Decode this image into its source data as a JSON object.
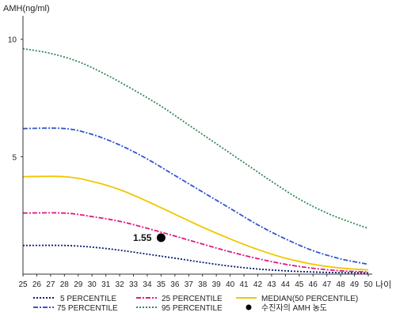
{
  "chart_data": {
    "type": "line",
    "ylabel": "AMH(ng/ml)",
    "xlabel": "나이",
    "xlim": [
      25,
      50
    ],
    "ylim": [
      0,
      11
    ],
    "x_ticks": [
      25,
      26,
      27,
      28,
      29,
      30,
      31,
      32,
      33,
      34,
      35,
      36,
      37,
      38,
      39,
      40,
      41,
      42,
      43,
      44,
      45,
      46,
      47,
      48,
      49,
      50
    ],
    "y_ticks": [
      5,
      10
    ],
    "grid": false,
    "legend_position": "bottom",
    "series": [
      {
        "name": "5 PERCENTILE",
        "color": "#0a1a6e",
        "dash": "dotted",
        "legend_text": ".... 5 PERCENTILE",
        "points": [
          [
            25,
            1.22
          ],
          [
            28,
            1.22
          ],
          [
            30,
            1.15
          ],
          [
            32,
            1.02
          ],
          [
            34,
            0.85
          ],
          [
            36,
            0.68
          ],
          [
            38,
            0.5
          ],
          [
            40,
            0.34
          ],
          [
            42,
            0.22
          ],
          [
            44,
            0.14
          ],
          [
            46,
            0.09
          ],
          [
            48,
            0.06
          ],
          [
            50,
            0.05
          ]
        ]
      },
      {
        "name": "75 PERCENTILE",
        "color": "#3355cc",
        "dash": "dashdot",
        "points": [
          [
            25,
            6.2
          ],
          [
            28,
            6.2
          ],
          [
            30,
            5.95
          ],
          [
            32,
            5.5
          ],
          [
            34,
            4.9
          ],
          [
            36,
            4.2
          ],
          [
            38,
            3.5
          ],
          [
            40,
            2.8
          ],
          [
            42,
            2.1
          ],
          [
            44,
            1.5
          ],
          [
            46,
            1.0
          ],
          [
            48,
            0.65
          ],
          [
            50,
            0.42
          ]
        ]
      },
      {
        "name": "25 PERCENTILE",
        "color": "#e0197f",
        "dash": "dashdot",
        "points": [
          [
            25,
            2.6
          ],
          [
            28,
            2.6
          ],
          [
            30,
            2.45
          ],
          [
            32,
            2.25
          ],
          [
            34,
            1.95
          ],
          [
            36,
            1.62
          ],
          [
            38,
            1.28
          ],
          [
            40,
            0.95
          ],
          [
            42,
            0.66
          ],
          [
            44,
            0.42
          ],
          [
            46,
            0.25
          ],
          [
            48,
            0.14
          ],
          [
            50,
            0.09
          ]
        ]
      },
      {
        "name": "95 PERCENTILE",
        "color": "#2e8b57",
        "dash": "dotted",
        "points": [
          [
            25,
            9.6
          ],
          [
            27,
            9.4
          ],
          [
            29,
            9.05
          ],
          [
            31,
            8.5
          ],
          [
            33,
            7.85
          ],
          [
            35,
            7.15
          ],
          [
            37,
            6.35
          ],
          [
            39,
            5.55
          ],
          [
            41,
            4.75
          ],
          [
            43,
            3.95
          ],
          [
            45,
            3.2
          ],
          [
            47,
            2.6
          ],
          [
            49,
            2.15
          ],
          [
            50,
            1.95
          ]
        ]
      },
      {
        "name": "MEDIAN(50 PERCENTILE)",
        "color": "#f2c600",
        "dash": "solid",
        "points": [
          [
            25,
            4.15
          ],
          [
            28,
            4.15
          ],
          [
            30,
            3.95
          ],
          [
            32,
            3.6
          ],
          [
            34,
            3.1
          ],
          [
            36,
            2.55
          ],
          [
            38,
            2.0
          ],
          [
            40,
            1.5
          ],
          [
            42,
            1.05
          ],
          [
            44,
            0.68
          ],
          [
            46,
            0.42
          ],
          [
            48,
            0.26
          ],
          [
            50,
            0.18
          ]
        ]
      }
    ],
    "marker": {
      "legend_label": "수진자의 AMH 농도",
      "x": 35,
      "y": 1.55,
      "value_label": "1.55",
      "color": "#000000"
    }
  }
}
